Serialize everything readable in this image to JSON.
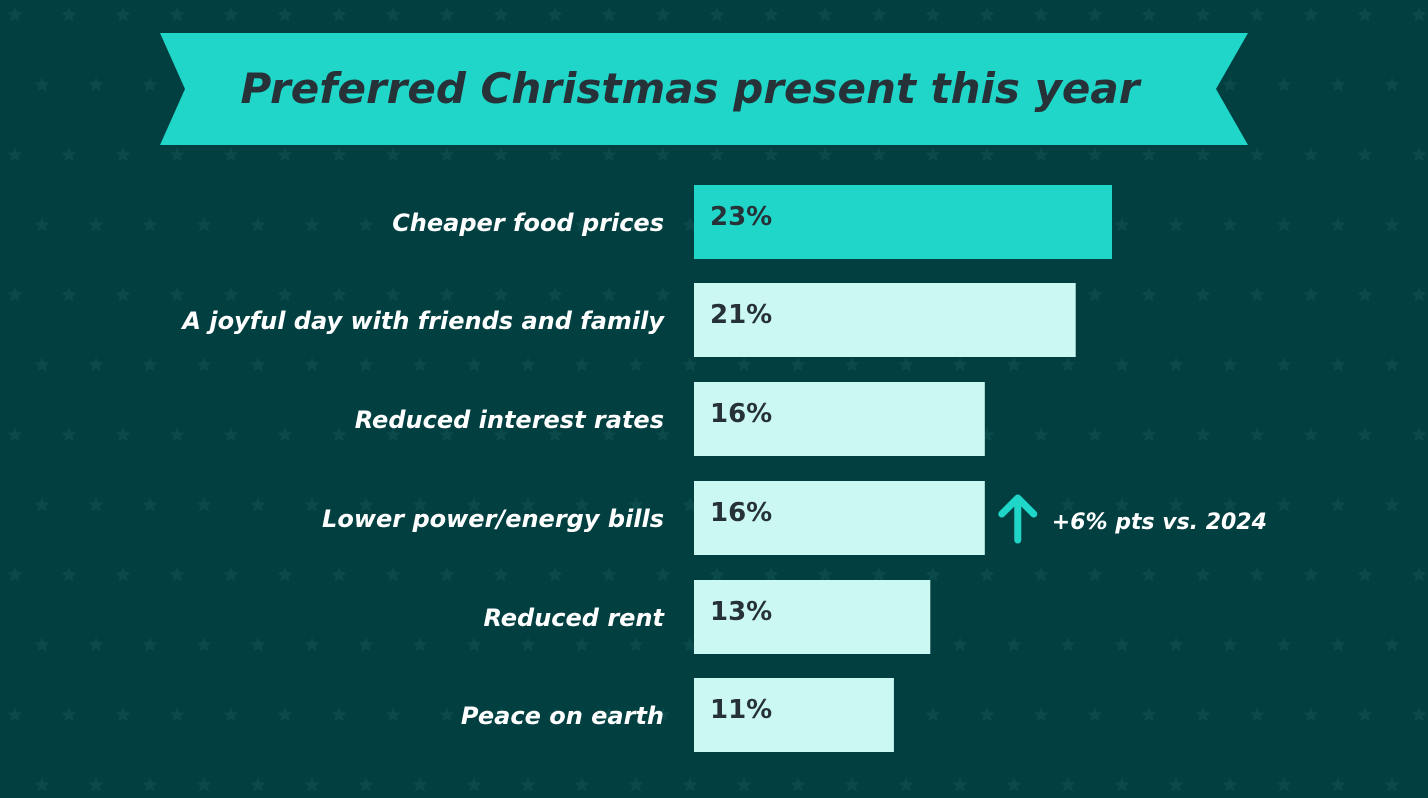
{
  "colors": {
    "background": "#023f40",
    "ribbon": "#1fd6c8",
    "bar_highlight": "#1fd6c8",
    "bar_default": "#cbf8f3",
    "title_text": "#263238",
    "label_text": "#ffffff",
    "value_text": "#263238",
    "arrow": "#1fd6c8",
    "star": "#0a4a4a"
  },
  "chart_data": {
    "type": "bar",
    "orientation": "horizontal",
    "title": "Preferred Christmas present this year",
    "categories": [
      "Cheaper food prices",
      "A joyful day with friends and family",
      "Reduced interest rates",
      "Lower power/energy bills",
      "Reduced rent",
      "Peace on earth"
    ],
    "values": [
      23,
      21,
      16,
      16,
      13,
      11
    ],
    "value_labels": [
      "23%",
      "21%",
      "16%",
      "16%",
      "13%",
      "11%"
    ],
    "highlight_index": 0,
    "xlim": [
      0,
      23
    ],
    "annotations": [
      {
        "category": "Lower power/energy bills",
        "icon": "up-arrow-icon",
        "text": "+6% pts vs. 2024"
      }
    ]
  }
}
